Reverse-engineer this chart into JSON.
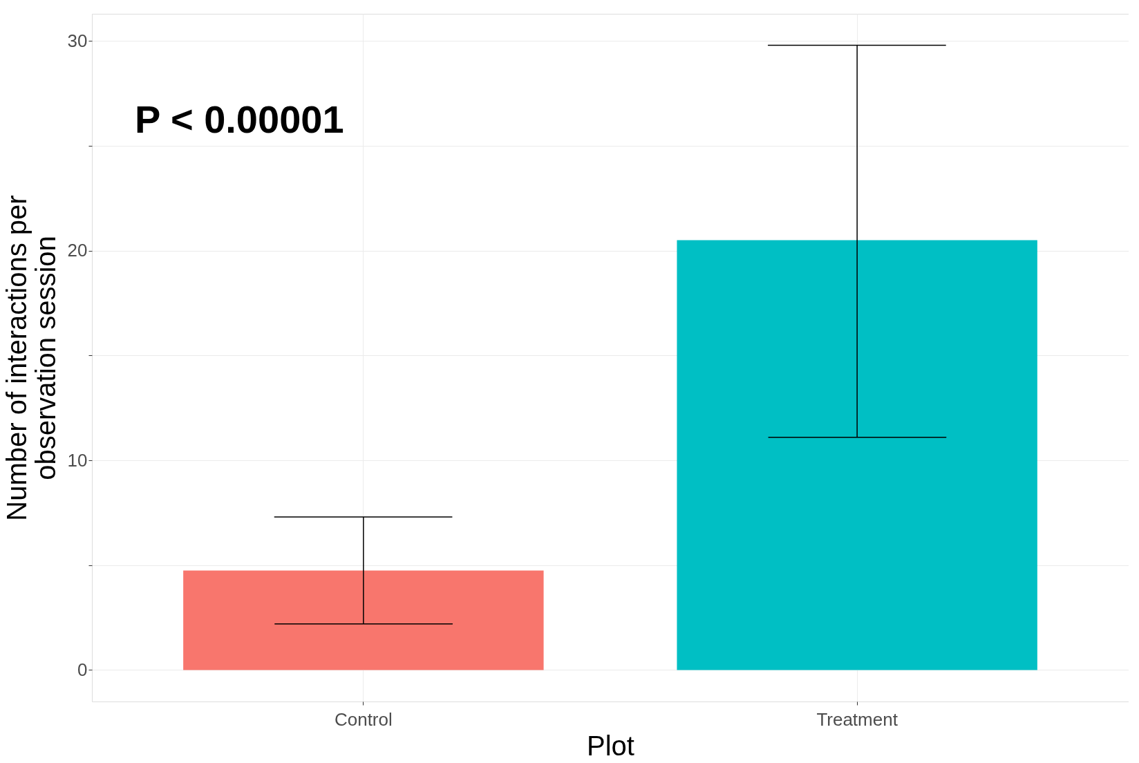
{
  "chart_data": {
    "type": "bar",
    "xlabel": "Plot",
    "ylabel": "Number of interactions per\nobservation session",
    "categories": [
      "Control",
      "Treatment"
    ],
    "values": [
      4.75,
      20.5
    ],
    "colors": [
      "#f8766d",
      "#00bfc4"
    ],
    "errors": [
      [
        2.2,
        7.3
      ],
      [
        11.1,
        29.8
      ]
    ],
    "ylim": [
      -1.5,
      31.3
    ],
    "yticks": [
      0,
      {
        "value": 5,
        "label": null
      },
      10,
      {
        "value": 15,
        "label": null
      },
      20,
      {
        "value": 25,
        "label": null
      },
      30
    ],
    "grid": true,
    "legend": false,
    "annotations": [
      "P < 0.00001"
    ]
  }
}
